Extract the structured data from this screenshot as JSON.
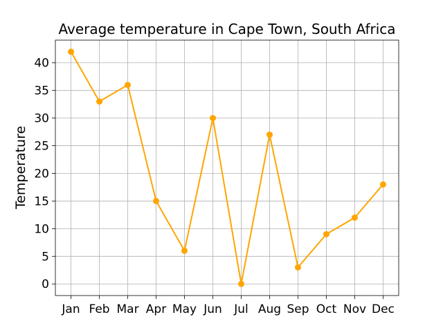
{
  "chart_data": {
    "type": "line",
    "title": "Average temperature in Cape Town, South Africa",
    "xlabel": "",
    "ylabel": "Temperature",
    "categories": [
      "Jan",
      "Feb",
      "Mar",
      "Apr",
      "May",
      "Jun",
      "Jul",
      "Aug",
      "Sep",
      "Oct",
      "Nov",
      "Dec"
    ],
    "values": [
      42,
      33,
      36,
      15,
      6,
      30,
      0,
      27,
      3,
      9,
      12,
      18
    ],
    "ylim": [
      -2.1,
      44.1
    ],
    "yticks": [
      0,
      5,
      10,
      15,
      20,
      25,
      30,
      35,
      40
    ],
    "grid": true,
    "line_color": "#FFA500",
    "marker": "circle"
  }
}
